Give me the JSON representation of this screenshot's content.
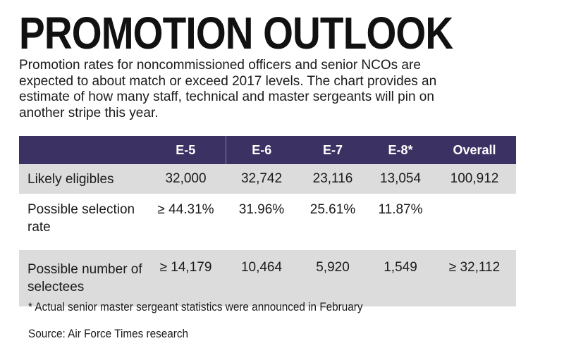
{
  "title": "PROMOTION OUTLOOK",
  "subtitle": "Promotion rates for noncommissioned officers and senior NCOs are expected to about match or exceed 2017 levels. The chart provides an estimate of how many staff, technical and master sergeants will pin on another stripe this year.",
  "chart_data": {
    "type": "table",
    "columns": [
      "",
      "E-5",
      "E-6",
      "E-7",
      "E-8*",
      "Overall"
    ],
    "rows": [
      {
        "label": "Likely eligibles",
        "values": [
          "32,000",
          "32,742",
          "23,116",
          "13,054",
          "100,912"
        ]
      },
      {
        "label": "Possible selection rate",
        "values": [
          "≥ 44.31%",
          "31.96%",
          "25.61%",
          "11.87%",
          ""
        ]
      },
      {
        "label": "Possible number of selectees",
        "values": [
          "≥ 14,179",
          "10,464",
          "5,920",
          "1,549",
          "≥ 32,112"
        ]
      }
    ]
  },
  "footnote": "* Actual senior master sergeant statistics were announced in February",
  "source": "Source: Air Force Times research",
  "colors": {
    "header_bg": "#3b3163",
    "shade_bg": "#dcdcdc"
  }
}
